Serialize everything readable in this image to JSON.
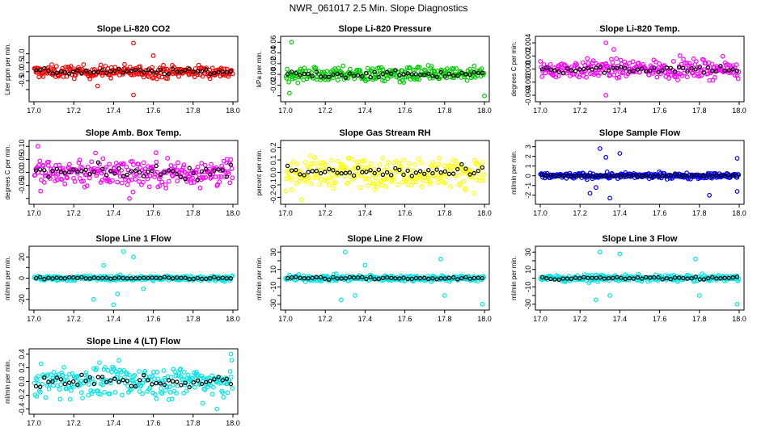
{
  "page_title": "NWR_061017  2.5 Min. Slope Diagnostics",
  "chart_data": [
    {
      "type": "scatter",
      "title": "Slope Li-820 CO2",
      "ylabel": "Liter ppm per min.",
      "xlim": [
        17.0,
        18.0
      ],
      "ylim": [
        -1.5,
        1.8
      ],
      "yticks": [
        -1.0,
        -0.5,
        0.0,
        0.5,
        1.0
      ],
      "ytick_labels": [
        "",
        "-0.5",
        "0.0",
        "0.5",
        "1.0"
      ],
      "color": "#ff0000",
      "spread": 0.3,
      "outliers": [
        [
          17.5,
          1.6
        ],
        [
          17.5,
          -1.3
        ],
        [
          17.32,
          -0.8
        ],
        [
          17.6,
          0.9
        ]
      ]
    },
    {
      "type": "scatter",
      "title": "Slope Li-820 Pressure",
      "ylabel": "kPa per min.",
      "xlim": [
        17.0,
        18.0
      ],
      "ylim": [
        -0.045,
        0.065
      ],
      "yticks": [
        -0.04,
        -0.02,
        0.0,
        0.02,
        0.04,
        0.06
      ],
      "ytick_labels": [
        "",
        "-0.02",
        "0.00",
        "0.02",
        "0.04",
        "0.06"
      ],
      "color": "#00cc00",
      "spread": 0.012,
      "outliers": [
        [
          17.03,
          0.06
        ],
        [
          18.0,
          -0.04
        ],
        [
          17.02,
          -0.035
        ]
      ]
    },
    {
      "type": "scatter",
      "title": "Slope Li-820 Temp.",
      "ylabel": "degrees C per min.",
      "xlim": [
        17.0,
        18.0
      ],
      "ylim": [
        -0.0045,
        0.0045
      ],
      "yticks": [
        -0.004,
        -0.002,
        0.0,
        0.002,
        0.004
      ],
      "ytick_labels": [
        "-0.004",
        "-0.002",
        "0.000",
        "0.002",
        "0.004"
      ],
      "color": "#ff00ff",
      "spread": 0.0012,
      "outliers": [
        [
          17.33,
          0.004
        ],
        [
          17.33,
          -0.004
        ],
        [
          17.37,
          0.003
        ]
      ]
    },
    {
      "type": "scatter",
      "title": "Slope Amb. Box Temp.",
      "ylabel": "degrees C per min.",
      "xlim": [
        17.0,
        18.0
      ],
      "ylim": [
        -0.11,
        0.11
      ],
      "yticks": [
        -0.1,
        -0.05,
        0.0,
        0.05,
        0.1
      ],
      "ytick_labels": [
        "",
        "-0.05",
        "0.00",
        "0.05",
        "0.10"
      ],
      "color": "#ff00ff",
      "spread": 0.05,
      "outliers": [
        [
          17.48,
          -0.1
        ],
        [
          17.02,
          0.1
        ]
      ]
    },
    {
      "type": "scatter",
      "title": "Slope Gas Stream RH",
      "ylabel": "percent per min.",
      "xlim": [
        17.0,
        18.0
      ],
      "ylim": [
        -0.23,
        0.23
      ],
      "yticks": [
        -0.2,
        -0.1,
        0.0,
        0.1,
        0.2
      ],
      "ytick_labels": [
        "-0.2",
        "-0.1",
        "0.0",
        "0.1",
        "0.2"
      ],
      "color": "#ffff00",
      "spread": 0.1,
      "outliers": [
        [
          17.08,
          -0.22
        ]
      ]
    },
    {
      "type": "scatter",
      "title": "Slope Sample Flow",
      "ylabel": "ml/min per min.",
      "xlim": [
        17.0,
        18.0
      ],
      "ylim": [
        -2.6,
        3.3
      ],
      "yticks": [
        -2,
        -1,
        0,
        1,
        2,
        3
      ],
      "ytick_labels": [
        "-2",
        "-1",
        "0",
        "1",
        "2",
        "3"
      ],
      "color": "#0000ff",
      "spread": 0.25,
      "outliers": [
        [
          17.3,
          2.8
        ],
        [
          17.35,
          -2.3
        ],
        [
          17.25,
          -1.8
        ],
        [
          17.4,
          2.3
        ],
        [
          17.33,
          1.9
        ],
        [
          17.28,
          -1.2
        ],
        [
          17.85,
          -2.0
        ],
        [
          17.99,
          1.8
        ],
        [
          17.99,
          -1.6
        ]
      ]
    },
    {
      "type": "scatter",
      "title": "Slope Line 1 Flow",
      "ylabel": "ml/min per min.",
      "xlim": [
        17.0,
        18.0
      ],
      "ylim": [
        -27,
        27
      ],
      "yticks": [
        -20,
        -10,
        0,
        10,
        20
      ],
      "ytick_labels": [
        "-20",
        "",
        "0",
        "",
        "20"
      ],
      "color": "#00e5e5",
      "spread": 2,
      "outliers": [
        [
          17.3,
          -20
        ],
        [
          17.45,
          25
        ],
        [
          17.4,
          -25
        ],
        [
          17.5,
          20
        ],
        [
          17.35,
          12
        ],
        [
          17.55,
          -10
        ],
        [
          17.42,
          -15
        ]
      ]
    },
    {
      "type": "scatter",
      "title": "Slope Line 2 Flow",
      "ylabel": "ml/min per min.",
      "xlim": [
        17.0,
        18.0
      ],
      "ylim": [
        -33,
        33
      ],
      "yticks": [
        -30,
        -20,
        -10,
        0,
        10,
        20,
        30
      ],
      "ytick_labels": [
        "-30",
        "",
        "-10",
        "",
        "10",
        "",
        "30"
      ],
      "color": "#00e5e5",
      "spread": 3,
      "outliers": [
        [
          17.3,
          30
        ],
        [
          17.28,
          -25
        ],
        [
          17.35,
          -20
        ],
        [
          17.4,
          15
        ],
        [
          17.78,
          22
        ],
        [
          17.8,
          -20
        ],
        [
          17.99,
          -30
        ]
      ]
    },
    {
      "type": "scatter",
      "title": "Slope Line 3 Flow",
      "ylabel": "ml/min per min.",
      "xlim": [
        17.0,
        18.0
      ],
      "ylim": [
        -33,
        33
      ],
      "yticks": [
        -30,
        -20,
        -10,
        0,
        10,
        20,
        30
      ],
      "ytick_labels": [
        "-30",
        "",
        "-10",
        "",
        "10",
        "",
        "30"
      ],
      "color": "#00e5e5",
      "spread": 3,
      "outliers": [
        [
          17.3,
          30
        ],
        [
          17.28,
          -25
        ],
        [
          17.35,
          -20
        ],
        [
          17.4,
          28
        ],
        [
          17.78,
          22
        ],
        [
          17.8,
          -20
        ],
        [
          17.99,
          -30
        ]
      ]
    },
    {
      "type": "scatter",
      "title": "Slope Line 4 (LT) Flow",
      "ylabel": "ml/min per min.",
      "xlim": [
        17.0,
        18.0
      ],
      "ylim": [
        -0.43,
        0.43
      ],
      "yticks": [
        -0.4,
        -0.2,
        0.0,
        0.2,
        0.4
      ],
      "ytick_labels": [
        "-0.4",
        "-0.2",
        "0.0",
        "0.2",
        "0.4"
      ],
      "color": "#00e5e5",
      "spread": 0.2,
      "outliers": [
        [
          17.99,
          0.4
        ],
        [
          17.92,
          -0.4
        ]
      ]
    }
  ],
  "x_ticks": [
    17.0,
    17.2,
    17.4,
    17.6,
    17.8,
    18.0
  ],
  "x_tick_labels": [
    "17.0",
    "17.2",
    "17.4",
    "17.6",
    "17.8",
    "18.0"
  ]
}
